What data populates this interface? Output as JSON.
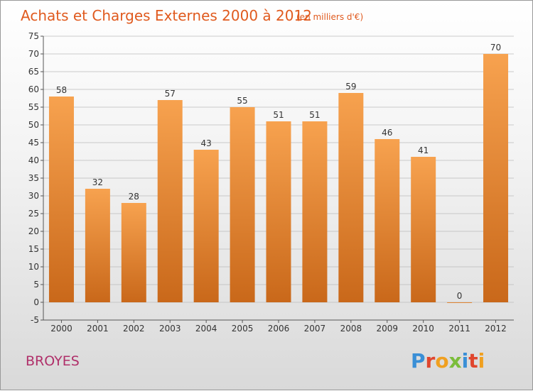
{
  "chart_data": {
    "type": "bar",
    "title": "Achats et Charges Externes 2000 à 2012",
    "subtitle": "(en milliers d'€)",
    "categories": [
      "2000",
      "2001",
      "2002",
      "2003",
      "2004",
      "2005",
      "2006",
      "2007",
      "2008",
      "2009",
      "2010",
      "2011",
      "2012"
    ],
    "values": [
      58,
      32,
      28,
      57,
      43,
      55,
      51,
      51,
      59,
      46,
      41,
      0,
      70
    ],
    "ylim": [
      -5,
      75
    ],
    "yticks": [
      -5,
      0,
      5,
      10,
      15,
      20,
      25,
      30,
      35,
      40,
      45,
      50,
      55,
      60,
      65,
      70,
      75
    ],
    "grid": true,
    "bar_color_top": "#f7a24f",
    "bar_color_bottom": "#c9681a"
  },
  "footer": {
    "commune": "BROYES",
    "logo": "Proxiti"
  }
}
